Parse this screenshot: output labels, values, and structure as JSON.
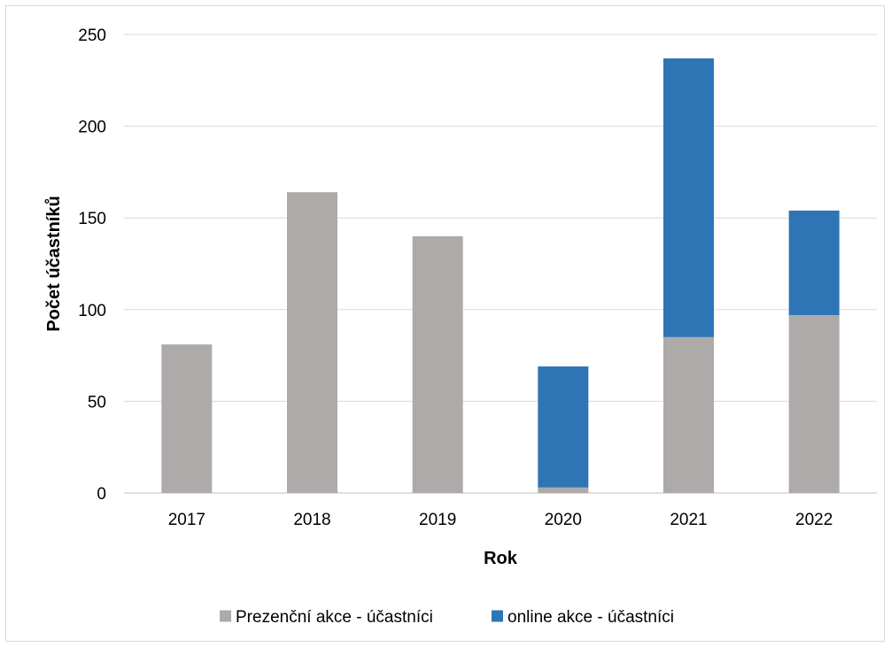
{
  "chart_data": {
    "type": "bar",
    "stacked": true,
    "categories": [
      "2017",
      "2018",
      "2019",
      "2020",
      "2021",
      "2022"
    ],
    "series": [
      {
        "name": "Prezenční akce - účastníci",
        "color": "#aeaaaa",
        "values": [
          81,
          164,
          140,
          3,
          85,
          97
        ]
      },
      {
        "name": "online akce - účastníci",
        "color": "#2e75b6",
        "values": [
          0,
          0,
          0,
          66,
          152,
          57
        ]
      }
    ],
    "title": "",
    "xlabel": "Rok",
    "ylabel": "Počet účastníků",
    "ylim": [
      0,
      250
    ],
    "yticks": [
      0,
      50,
      100,
      150,
      200,
      250
    ],
    "grid": true,
    "legend": "bottom"
  }
}
